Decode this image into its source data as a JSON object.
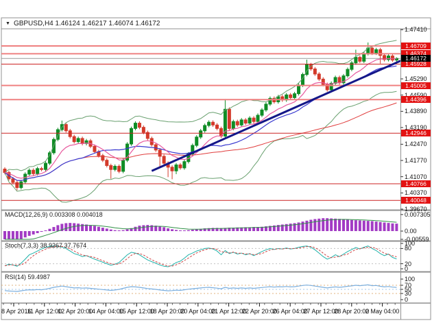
{
  "window": {
    "dropdown_icon": "▼",
    "title": "GBPUSD,H4  1.46124 1.46217 1.46074 1.46172"
  },
  "colors": {
    "up": "#0f8c25",
    "down": "#d33a2a",
    "bollinger": "#69a06f",
    "ma_fast": "#e85a9e",
    "ma_slow": "#3a3ad0",
    "ma_long": "#e03c3c",
    "trendline": "#141788",
    "sr_thick": "#ef8080",
    "sr_thin": "#cc2222",
    "badge_red": "#e31212",
    "badge_black": "#000000",
    "current_line": "#9a9a9a",
    "macd_hist": "#a23bc4",
    "macd_signal": "#2f8f46",
    "stoch_k": "#20b2aa",
    "stoch_d": "#d04545",
    "rsi": "#7aaede",
    "rsi_level": "#e0b27e",
    "rsi_mid": "#9fc5e8",
    "stoch_level": "#c0c0c0",
    "grid": "#909090",
    "text": "#111111"
  },
  "price_axis": {
    "plain_labels": [
      "1.47410",
      "1.45290",
      "1.44590",
      "1.43890",
      "1.43190",
      "1.42470",
      "1.41770",
      "1.41070",
      "1.40370",
      "1.39670"
    ],
    "sr_levels": [
      {
        "label": "1.46709",
        "price": 1.46709,
        "weight": "thick"
      },
      {
        "label": "1.46374",
        "price": 1.46374,
        "weight": "thick"
      },
      {
        "label": "1.45928",
        "price": 1.45928,
        "weight": "thin"
      },
      {
        "label": "1.45005",
        "price": 1.45005,
        "weight": "thick"
      },
      {
        "label": "1.44396",
        "price": 1.44396,
        "weweight": "thick",
        "weight": "thick"
      },
      {
        "label": "1.42946",
        "price": 1.42946,
        "weight": "thin"
      },
      {
        "label": "1.40766",
        "price": 1.40766,
        "weight": "thin"
      },
      {
        "label": "1.40048",
        "price": 1.40048,
        "weight": "thin"
      }
    ],
    "current": {
      "label": "1.46172",
      "price": 1.46172
    }
  },
  "panels": {
    "macd": {
      "label": "MACD(12,26,9) 0.003308 0.004018",
      "axis": [
        {
          "text": "0.007305",
          "v": 0.007305
        },
        {
          "text": "0.00",
          "v": 0
        },
        {
          "text": "-0.00559",
          "v": -0.00559
        }
      ]
    },
    "stoch": {
      "label": "Stoch(7,3,3) 38.9267 37.7674",
      "axis": [
        {
          "text": "100",
          "v": 100
        },
        {
          "text": "80",
          "v": 80
        },
        {
          "text": "20",
          "v": 20
        },
        {
          "text": "0",
          "v": 0
        }
      ],
      "levels": [
        80,
        20
      ]
    },
    "rsi": {
      "label": "RSI(14) 59.4987",
      "axis": [
        {
          "text": "100",
          "v": 100
        },
        {
          "text": "70",
          "v": 70
        },
        {
          "text": "50",
          "v": 50
        },
        {
          "text": "30",
          "v": 30
        },
        {
          "text": "0",
          "v": 0
        }
      ],
      "levels": [
        70,
        50,
        30
      ]
    }
  },
  "time_axis": {
    "labels": [
      "8 Apr 2016",
      "11 Apr 12:00",
      "12 Apr 20:00",
      "14 Apr 04:00",
      "15 Apr 12:00",
      "18 Apr 20:00",
      "20 Apr 04:00",
      "21 Apr 12:00",
      "22 Apr 20:00",
      "26 Apr 04:00",
      "27 Apr 12:00",
      "28 Apr 20:00",
      "2 May 04:00"
    ]
  },
  "chart_data": {
    "type": "candlestick",
    "symbol": "GBPUSD",
    "timeframe": "H4",
    "ylim": [
      1.3967,
      1.4745
    ],
    "open_first": 1.414,
    "default_wick": 0.0008,
    "closes": [
      1.4125,
      1.4098,
      1.4082,
      1.406,
      1.4085,
      1.4118,
      1.4135,
      1.412,
      1.4142,
      1.4138,
      1.4165,
      1.421,
      1.4268,
      1.431,
      1.4332,
      1.4305,
      1.428,
      1.4258,
      1.4272,
      1.425,
      1.4262,
      1.4238,
      1.4215,
      1.4198,
      1.4178,
      1.4155,
      1.4138,
      1.4152,
      1.413,
      1.4178,
      1.4248,
      1.4315,
      1.4338,
      1.432,
      1.4298,
      1.4272,
      1.4245,
      1.4222,
      1.4195,
      1.4165,
      1.4148,
      1.4132,
      1.4158,
      1.4145,
      1.4172,
      1.4205,
      1.4242,
      1.4278,
      1.4305,
      1.4328,
      1.4342,
      1.433,
      1.4315,
      1.4282,
      1.4398,
      1.4315,
      1.4345,
      1.433,
      1.4352,
      1.4338,
      1.436,
      1.4345,
      1.4372,
      1.4395,
      1.442,
      1.4445,
      1.443,
      1.4452,
      1.4438,
      1.446,
      1.4448,
      1.4465,
      1.4502,
      1.4548,
      1.459,
      1.4572,
      1.455,
      1.4528,
      1.4505,
      1.4482,
      1.451,
      1.4535,
      1.4512,
      1.4542,
      1.457,
      1.4598,
      1.4622,
      1.4605,
      1.4638,
      1.4662,
      1.464,
      1.4655,
      1.463,
      1.4612,
      1.4628,
      1.461,
      1.4617
    ],
    "wick_overrides": {
      "3": {
        "low": 1.4048
      },
      "14": {
        "high": 1.4349
      },
      "26": {
        "low": 1.4098
      },
      "38": {
        "low": 1.415
      },
      "40": {
        "low": 1.4105
      },
      "41": {
        "low": 1.4096
      },
      "42": {
        "low": 1.4118
      },
      "54": {
        "high": 1.4442
      },
      "74": {
        "high": 1.4612
      },
      "86": {
        "high": 1.4655
      },
      "89": {
        "high": 1.4686
      },
      "92": {
        "low": 1.4595
      },
      "96": {
        "high": 1.4622
      }
    },
    "macd_histogram": [
      -0.0058,
      -0.0053,
      -0.0047,
      -0.0041,
      -0.0035,
      -0.0028,
      -0.0021,
      -0.0015,
      -0.0009,
      -0.0003,
      0.0003,
      0.001,
      0.0018,
      0.0026,
      0.0032,
      0.0035,
      0.0036,
      0.0035,
      0.0033,
      0.0031,
      0.0029,
      0.0026,
      0.0023,
      0.0019,
      0.0015,
      0.0011,
      0.0007,
      0.0004,
      0.0003,
      0.0004,
      0.0008,
      0.0013,
      0.0019,
      0.0024,
      0.0026,
      0.0027,
      0.0026,
      0.0024,
      0.0021,
      0.0017,
      0.0012,
      0.0008,
      0.0005,
      0.0003,
      0.0003,
      0.0004,
      0.0006,
      0.0008,
      0.001,
      0.0012,
      0.0013,
      0.0014,
      0.0014,
      0.0013,
      0.0014,
      0.0015,
      0.0015,
      0.0016,
      0.0016,
      0.0017,
      0.0017,
      0.0018,
      0.0018,
      0.0019,
      0.0021,
      0.0023,
      0.0025,
      0.0027,
      0.0029,
      0.0031,
      0.0033,
      0.0035,
      0.0038,
      0.0042,
      0.0046,
      0.005,
      0.0053,
      0.0055,
      0.0057,
      0.0057,
      0.0056,
      0.0055,
      0.0054,
      0.0052,
      0.0051,
      0.0049,
      0.0048,
      0.0047,
      0.0046,
      0.0045,
      0.0044,
      0.0042,
      0.004,
      0.0038,
      0.0036,
      0.0034,
      0.0033
    ],
    "macd_values": {
      "macd": 0.003308,
      "signal": 0.004018
    },
    "stoch_k": [
      12,
      18,
      15,
      10,
      22,
      38,
      55,
      62,
      70,
      78,
      85,
      88,
      90,
      88,
      86,
      80,
      70,
      60,
      55,
      48,
      52,
      45,
      38,
      32,
      26,
      20,
      14,
      18,
      25,
      40,
      55,
      65,
      62,
      55,
      45,
      35,
      28,
      22,
      15,
      10,
      8,
      14,
      25,
      30,
      42,
      55,
      62,
      70,
      75,
      80,
      82,
      78,
      70,
      55,
      72,
      60,
      65,
      58,
      62,
      55,
      60,
      52,
      60,
      68,
      75,
      80,
      76,
      80,
      78,
      82,
      78,
      80,
      85,
      88,
      90,
      85,
      75,
      62,
      48,
      38,
      45,
      55,
      48,
      58,
      68,
      76,
      84,
      78,
      85,
      90,
      80,
      72,
      60,
      52,
      58,
      45,
      38.9
    ],
    "stoch_values": {
      "k": 38.9267,
      "d": 37.7674
    },
    "rsi": [
      44,
      42,
      41,
      40,
      43,
      46,
      48,
      47,
      49,
      48,
      51,
      55,
      60,
      63,
      66,
      63,
      60,
      57,
      58,
      56,
      57,
      55,
      53,
      51,
      49,
      47,
      45,
      47,
      50,
      55,
      60,
      63,
      62,
      60,
      57,
      54,
      52,
      50,
      47,
      45,
      43,
      44,
      46,
      45,
      48,
      51,
      53,
      55,
      57,
      59,
      60,
      58,
      56,
      53,
      60,
      55,
      57,
      55,
      57,
      55,
      57,
      55,
      57,
      59,
      61,
      63,
      61,
      63,
      62,
      64,
      62,
      63,
      66,
      69,
      71,
      69,
      66,
      63,
      60,
      57,
      60,
      62,
      60,
      62,
      65,
      67,
      70,
      68,
      70,
      72,
      68,
      69,
      65,
      62,
      64,
      61,
      59.5
    ],
    "rsi_value": 59.4987,
    "trendline": {
      "from_index": 36,
      "from_price": 1.4132,
      "to_index": 98,
      "to_price": 1.4615
    },
    "indicators": [
      "Bollinger Bands (green)",
      "MA slow (blue)",
      "MA fast (magenta)",
      "Long MA (red)",
      "MACD(12,26,9)",
      "Stoch(7,3,3)",
      "RSI(14)"
    ]
  }
}
